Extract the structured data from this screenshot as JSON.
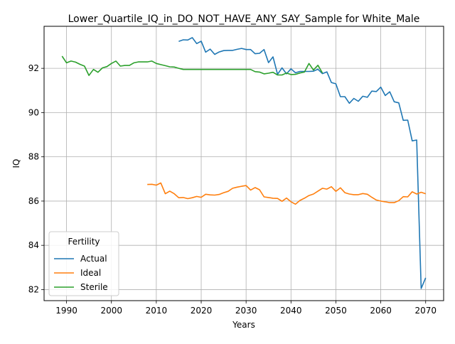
{
  "chart_data": {
    "type": "line",
    "title": "Lower_Quartile_IQ_in_DO_NOT_HAVE_ANY_SAY_Sample for White_Male",
    "xlabel": "Years",
    "ylabel": "IQ",
    "xlim": [
      1985,
      2074
    ],
    "ylim": [
      81.5,
      93.9
    ],
    "xticks": [
      1990,
      2000,
      2010,
      2020,
      2030,
      2040,
      2050,
      2060,
      2070
    ],
    "yticks": [
      82,
      84,
      86,
      88,
      90,
      92
    ],
    "grid": true,
    "legend": {
      "title": "Fertility",
      "placement": "lower-left"
    },
    "series": [
      {
        "name": "Actual",
        "color": "#1f77b4",
        "x": [
          2015,
          2016,
          2017,
          2018,
          2019,
          2020,
          2021,
          2022,
          2023,
          2024,
          2025,
          2026,
          2027,
          2028,
          2029,
          2030,
          2031,
          2032,
          2033,
          2034,
          2035,
          2036,
          2037,
          2038,
          2039,
          2040,
          2041,
          2042,
          2043,
          2044,
          2045,
          2046,
          2047,
          2048,
          2049,
          2050,
          2051,
          2052,
          2053,
          2054,
          2055,
          2056,
          2057,
          2058,
          2059,
          2060,
          2061,
          2062,
          2063,
          2064,
          2065,
          2066,
          2067,
          2068,
          2069,
          2070
        ],
        "values": [
          93.22,
          93.29,
          93.28,
          93.39,
          93.12,
          93.23,
          92.73,
          92.87,
          92.63,
          92.74,
          92.8,
          92.81,
          92.81,
          92.86,
          92.9,
          92.85,
          92.85,
          92.66,
          92.68,
          92.85,
          92.26,
          92.52,
          91.73,
          92.02,
          91.75,
          91.98,
          91.8,
          91.86,
          91.86,
          91.86,
          91.87,
          91.96,
          91.76,
          91.84,
          91.36,
          91.3,
          90.72,
          90.72,
          90.42,
          90.64,
          90.51,
          90.74,
          90.69,
          90.97,
          90.95,
          91.15,
          90.77,
          90.94,
          90.49,
          90.44,
          89.65,
          89.66,
          88.72,
          88.76,
          82.05,
          82.53
        ]
      },
      {
        "name": "Ideal",
        "color": "#ff7f0e",
        "x": [
          2008,
          2009,
          2010,
          2011,
          2012,
          2013,
          2014,
          2015,
          2016,
          2017,
          2018,
          2019,
          2020,
          2021,
          2022,
          2023,
          2024,
          2025,
          2026,
          2027,
          2028,
          2029,
          2030,
          2031,
          2032,
          2033,
          2034,
          2035,
          2036,
          2037,
          2038,
          2039,
          2040,
          2041,
          2042,
          2043,
          2044,
          2045,
          2046,
          2047,
          2048,
          2049,
          2050,
          2051,
          2052,
          2053,
          2054,
          2055,
          2056,
          2057,
          2058,
          2059,
          2060,
          2061,
          2062,
          2063,
          2064,
          2065,
          2066,
          2067,
          2068,
          2069,
          2070
        ],
        "values": [
          86.75,
          86.76,
          86.72,
          86.82,
          86.33,
          86.45,
          86.33,
          86.15,
          86.16,
          86.11,
          86.15,
          86.21,
          86.17,
          86.31,
          86.28,
          86.27,
          86.3,
          86.38,
          86.44,
          86.58,
          86.63,
          86.67,
          86.7,
          86.5,
          86.61,
          86.51,
          86.19,
          86.16,
          86.13,
          86.12,
          85.99,
          86.14,
          85.97,
          85.86,
          86.03,
          86.13,
          86.25,
          86.32,
          86.45,
          86.58,
          86.54,
          86.65,
          86.44,
          86.6,
          86.38,
          86.32,
          86.29,
          86.29,
          86.34,
          86.31,
          86.17,
          86.05,
          86.0,
          85.97,
          85.93,
          85.93,
          86.02,
          86.2,
          86.19,
          86.42,
          86.32,
          86.4,
          86.33
        ]
      },
      {
        "name": "Sterile",
        "color": "#2ca02c",
        "x": [
          1989,
          1990,
          1991,
          1992,
          1993,
          1994,
          1995,
          1996,
          1997,
          1998,
          1999,
          2000,
          2001,
          2002,
          2003,
          2004,
          2005,
          2006,
          2007,
          2008,
          2009,
          2010,
          2011,
          2012,
          2013,
          2014,
          2015,
          2016,
          2017,
          2018,
          2019,
          2020,
          2021,
          2022,
          2023,
          2024,
          2025,
          2026,
          2027,
          2028,
          2029,
          2030,
          2031,
          2032,
          2033,
          2034,
          2035,
          2036,
          2037,
          2038,
          2039,
          2040,
          2041,
          2042,
          2043,
          2044,
          2045,
          2046,
          2047
        ],
        "values": [
          92.55,
          92.25,
          92.33,
          92.28,
          92.18,
          92.1,
          91.68,
          91.95,
          91.82,
          92.02,
          92.08,
          92.22,
          92.33,
          92.1,
          92.13,
          92.13,
          92.25,
          92.29,
          92.29,
          92.29,
          92.33,
          92.22,
          92.17,
          92.12,
          92.07,
          92.06,
          92.0,
          91.95,
          91.95,
          91.95,
          91.95,
          91.95,
          91.95,
          91.95,
          91.95,
          91.95,
          91.95,
          91.95,
          91.95,
          91.95,
          91.95,
          91.95,
          91.95,
          91.85,
          91.83,
          91.75,
          91.78,
          91.82,
          91.7,
          91.7,
          91.79,
          91.72,
          91.73,
          91.79,
          91.83,
          92.22,
          91.92,
          92.14,
          91.79
        ]
      }
    ]
  }
}
